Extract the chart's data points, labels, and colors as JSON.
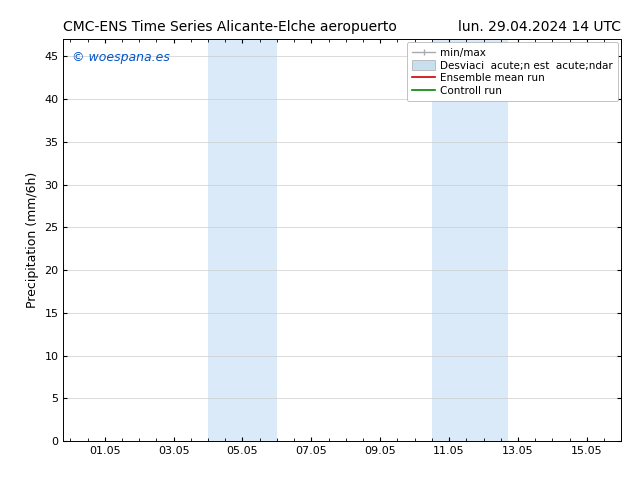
{
  "title_left": "CMC-ENS Time Series Alicante-Elche aeropuerto",
  "title_right": "lun. 29.04.2024 14 UTC",
  "ylabel": "Precipitation (mm/6h)",
  "watermark": "© woespana.es",
  "watermark_color": "#0055cc",
  "xlim": [
    -0.2,
    15.8
  ],
  "ylim": [
    0,
    47
  ],
  "yticks": [
    0,
    5,
    10,
    15,
    20,
    25,
    30,
    35,
    40,
    45
  ],
  "xtick_labels": [
    "01.05",
    "03.05",
    "05.05",
    "07.05",
    "09.05",
    "11.05",
    "13.05",
    "15.05"
  ],
  "xtick_positions": [
    1,
    3,
    5,
    7,
    9,
    11,
    13,
    15
  ],
  "shaded_regions": [
    {
      "xmin": 4.0,
      "xmax": 6.0,
      "color": "#daeaf8"
    },
    {
      "xmin": 10.5,
      "xmax": 12.7,
      "color": "#daeaf8"
    }
  ],
  "legend_label_minmax": "min/max",
  "legend_label_std": "Desviaci  acute;n est  acute;ndar",
  "legend_label_ensemble": "Ensemble mean run",
  "legend_label_control": "Controll run",
  "legend_color_minmax": "#aaaaaa",
  "legend_color_std": "#c8dff0",
  "legend_color_ensemble": "#cc0000",
  "legend_color_control": "#008800",
  "background_color": "#ffffff",
  "grid_color": "#cccccc",
  "title_fontsize": 10,
  "axis_fontsize": 9,
  "tick_fontsize": 8,
  "legend_fontsize": 7.5,
  "watermark_fontsize": 9
}
